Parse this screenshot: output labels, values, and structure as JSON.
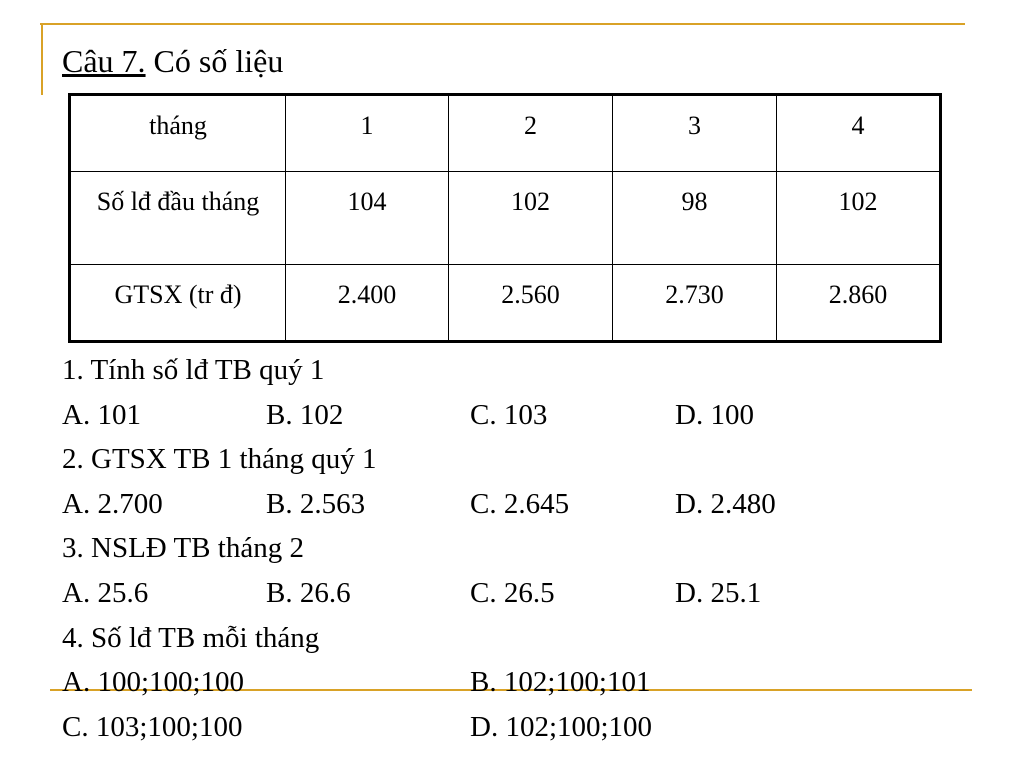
{
  "header": {
    "label": "Câu 7.",
    "title": "Có số liệu"
  },
  "table": {
    "rows": [
      [
        "tháng",
        "1",
        "2",
        "3",
        "4"
      ],
      [
        "Số lđ đầu tháng",
        "104",
        "102",
        "98",
        "102"
      ],
      [
        "GTSX (tr đ)",
        "2.400",
        "2.560",
        "2.730",
        "2.860"
      ]
    ]
  },
  "questions": [
    {
      "text": "1. Tính số lđ TB quý 1",
      "options": [
        "A. 101",
        "B. 102",
        "C. 103",
        "D. 100"
      ]
    },
    {
      "text": "2. GTSX TB 1 tháng quý 1",
      "options": [
        "A. 2.700",
        "B. 2.563",
        "C. 2.645",
        "D. 2.480"
      ]
    },
    {
      "text": "3. NSLĐ TB tháng 2",
      "options": [
        "A. 25.6",
        "B. 26.6",
        "C. 26.5",
        "D. 25.1"
      ]
    },
    {
      "text": "4. Số lđ TB mỗi tháng",
      "options": [
        "A. 100;100;100",
        "B. 102;100;101",
        "C. 103;100;100",
        "D. 102;100;100"
      ]
    }
  ]
}
